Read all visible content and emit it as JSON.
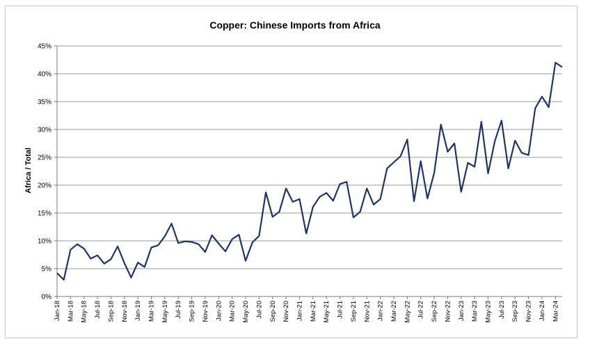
{
  "chart_data": {
    "type": "line",
    "title": "Copper: Chinese Imports from Africa",
    "xlabel": "",
    "ylabel": "Africa / Total",
    "ylim": [
      0,
      45
    ],
    "yticks": [
      "0%",
      "5%",
      "10%",
      "15%",
      "20%",
      "25%",
      "30%",
      "35%",
      "40%",
      "45%"
    ],
    "grid": true,
    "legend": "none",
    "line_color": "#1f3464",
    "categories": [
      "Jan-18",
      "Feb-18",
      "Mar-18",
      "Apr-18",
      "May-18",
      "Jun-18",
      "Jul-18",
      "Aug-18",
      "Sep-18",
      "Oct-18",
      "Nov-18",
      "Dec-18",
      "Jan-19",
      "Feb-19",
      "Mar-19",
      "Apr-19",
      "May-19",
      "Jun-19",
      "Jul-19",
      "Aug-19",
      "Sep-19",
      "Oct-19",
      "Nov-19",
      "Dec-19",
      "Jan-20",
      "Feb-20",
      "Mar-20",
      "Apr-20",
      "May-20",
      "Jun-20",
      "Jul-20",
      "Aug-20",
      "Sep-20",
      "Oct-20",
      "Nov-20",
      "Dec-20",
      "Jan-21",
      "Feb-21",
      "Mar-21",
      "Apr-21",
      "May-21",
      "Jun-21",
      "Jul-21",
      "Aug-21",
      "Sep-21",
      "Oct-21",
      "Nov-21",
      "Dec-21",
      "Jan-22",
      "Feb-22",
      "Mar-22",
      "Apr-22",
      "May-22",
      "Jun-22",
      "Jul-22",
      "Aug-22",
      "Sep-22",
      "Oct-22",
      "Nov-22",
      "Dec-22",
      "Jan-23",
      "Feb-23",
      "Mar-23",
      "Apr-23",
      "May-23",
      "Jun-23",
      "Jul-23",
      "Aug-23",
      "Sep-23",
      "Oct-23",
      "Nov-23",
      "Dec-23",
      "Jan-24",
      "Feb-24",
      "Mar-24",
      "Apr-24"
    ],
    "tick_labels": [
      "Jan-18",
      "Mar-18",
      "May-18",
      "Jul-18",
      "Sep-18",
      "Nov-18",
      "Jan-19",
      "Mar-19",
      "May-19",
      "Jul-19",
      "Sep-19",
      "Nov-19",
      "Jan-20",
      "Mar-20",
      "May-20",
      "Jul-20",
      "Sep-20",
      "Nov-20",
      "Jan-21",
      "Mar-21",
      "May-21",
      "Jul-21",
      "Sep-21",
      "Nov-21",
      "Jan-22",
      "Mar-22",
      "May-22",
      "Jul-22",
      "Sep-22",
      "Nov-22",
      "Jan-23",
      "Mar-23",
      "May-23",
      "Jul-23",
      "Sep-23",
      "Nov-23",
      "Jan-24",
      "Mar-24"
    ],
    "series": [
      {
        "values": [
          4.2,
          3.0,
          8.4,
          9.4,
          8.6,
          6.8,
          7.4,
          5.9,
          6.7,
          9.0,
          6.0,
          3.4,
          6.1,
          5.3,
          8.8,
          9.2,
          10.8,
          13.1,
          9.6,
          9.9,
          9.8,
          9.4,
          8.0,
          11.0,
          9.5,
          8.1,
          10.3,
          11.1,
          6.4,
          9.7,
          10.9,
          18.7,
          14.3,
          15.2,
          19.4,
          17.0,
          17.5,
          11.3,
          16.1,
          17.9,
          18.6,
          17.2,
          20.2,
          20.6,
          14.2,
          15.2,
          19.4,
          16.5,
          17.5,
          23.0,
          24.1,
          25.2,
          28.2,
          17.1,
          24.3,
          17.6,
          22.2,
          30.9,
          26.0,
          27.5,
          18.8,
          24.0,
          23.3,
          31.4,
          22.1,
          27.9,
          31.6,
          23.0,
          28.0,
          25.8,
          25.4,
          33.8,
          35.9,
          34.0,
          42.0,
          41.2
        ]
      }
    ]
  }
}
